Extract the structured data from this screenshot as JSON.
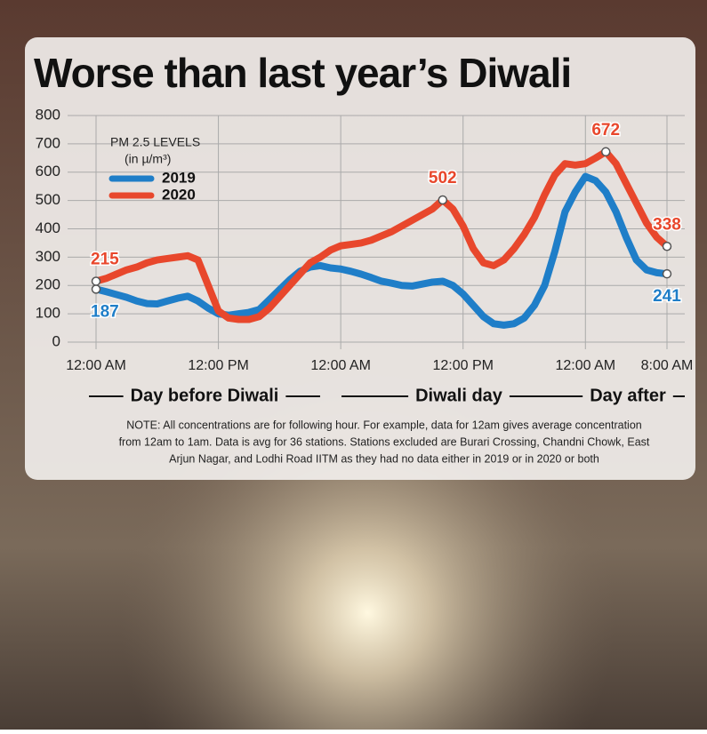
{
  "chart_data": {
    "type": "line",
    "title": "Worse than last year’s Diwali",
    "legend_title": [
      "PM 2.5 LEVELS",
      "(in µ/m³)"
    ],
    "x": [
      0,
      1,
      2,
      3,
      4,
      5,
      6,
      7,
      8,
      9,
      10,
      11,
      12,
      13,
      14,
      15,
      16,
      17,
      18,
      19,
      20,
      21,
      22,
      23,
      24,
      25,
      26,
      27,
      28,
      29,
      30,
      31,
      32,
      33,
      34,
      35,
      36,
      37,
      38,
      39,
      40,
      41,
      42,
      43,
      44,
      45,
      46,
      47,
      48,
      49,
      50,
      51,
      52,
      53,
      54,
      55,
      56
    ],
    "xlim": [
      0,
      56
    ],
    "xticks": [
      {
        "value": 0,
        "label": "12:00 AM"
      },
      {
        "value": 12,
        "label": "12:00 PM"
      },
      {
        "value": 24,
        "label": "12:00 AM"
      },
      {
        "value": 36,
        "label": "12:00 PM"
      },
      {
        "value": 48,
        "label": "12:00 AM"
      },
      {
        "value": 56,
        "label": "8:00 AM"
      }
    ],
    "ylim": [
      0,
      800
    ],
    "yticks": [
      0,
      100,
      200,
      300,
      400,
      500,
      600,
      700,
      800
    ],
    "grid": true,
    "legend": "upper left",
    "series": [
      {
        "name": "2019",
        "color": "#1f7ec8",
        "values": [
          187,
          178,
          168,
          158,
          145,
          136,
          135,
          145,
          155,
          162,
          145,
          120,
          100,
          95,
          100,
          105,
          115,
          150,
          185,
          220,
          250,
          265,
          270,
          262,
          258,
          250,
          240,
          228,
          215,
          208,
          200,
          198,
          205,
          212,
          215,
          200,
          170,
          130,
          90,
          65,
          60,
          65,
          85,
          130,
          200,
          320,
          460,
          530,
          585,
          570,
          530,
          460,
          370,
          290,
          255,
          245,
          241
        ],
        "value_labels": [
          "187",
          null,
          null,
          null,
          null,
          null,
          null,
          null,
          null,
          null,
          null,
          null,
          null,
          null,
          null,
          null,
          null,
          null,
          null,
          null,
          null,
          null,
          null,
          null,
          null,
          null,
          null,
          null,
          null,
          null,
          null,
          null,
          null,
          null,
          null,
          null,
          null,
          null,
          null,
          null,
          null,
          null,
          null,
          null,
          null,
          null,
          null,
          null,
          null,
          null,
          null,
          null,
          null,
          null,
          null,
          null,
          "241"
        ]
      },
      {
        "name": "2020",
        "color": "#e8472c",
        "values": [
          215,
          225,
          240,
          255,
          265,
          280,
          290,
          295,
          300,
          305,
          290,
          200,
          110,
          85,
          80,
          80,
          90,
          120,
          160,
          200,
          240,
          280,
          300,
          325,
          340,
          345,
          350,
          360,
          375,
          390,
          410,
          430,
          450,
          470,
          502,
          470,
          410,
          330,
          280,
          270,
          290,
          330,
          380,
          440,
          520,
          590,
          630,
          625,
          630,
          650,
          672,
          630,
          560,
          490,
          420,
          370,
          338
        ],
        "value_labels": [
          "215",
          null,
          null,
          null,
          null,
          null,
          null,
          null,
          null,
          null,
          null,
          null,
          null,
          null,
          null,
          null,
          null,
          null,
          null,
          null,
          null,
          null,
          null,
          null,
          null,
          null,
          null,
          null,
          null,
          null,
          null,
          null,
          null,
          null,
          "502",
          null,
          null,
          null,
          null,
          null,
          null,
          null,
          null,
          null,
          null,
          null,
          null,
          null,
          null,
          null,
          "672",
          null,
          null,
          null,
          null,
          null,
          "338"
        ]
      }
    ],
    "periods": [
      "Day before Diwali",
      "Diwali day",
      "Day after"
    ],
    "note": [
      "NOTE: All concentrations are for following hour. For example, data for 12am gives average concentration",
      "from 12am to 1am. Data is avg for 36 stations. Stations excluded are Burari Crossing, Chandni Chowk, East",
      "Arjun Nagar, and Lodhi Road IITM as they had no data either in 2019 or in 2020 or both"
    ]
  }
}
